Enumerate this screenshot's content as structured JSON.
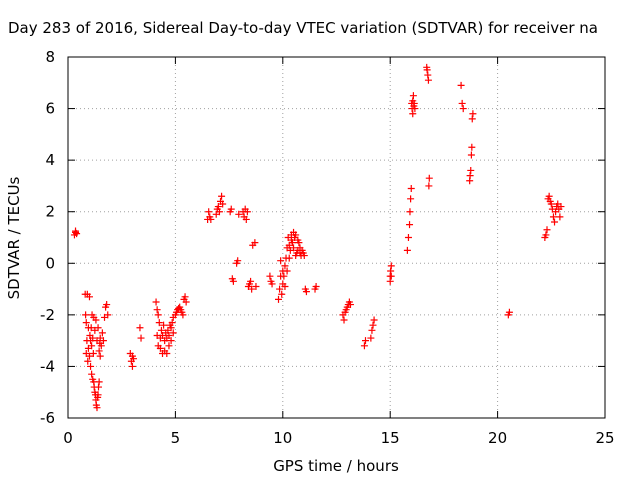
{
  "chart_data": {
    "type": "scatter",
    "title": "Day 283 of 2016, Sidereal Day-to-day VTEC variation (SDTVAR) for receiver na",
    "xlabel": "GPS time / hours",
    "ylabel": "SDTVAR / TECUs",
    "xlim": [
      0,
      25
    ],
    "ylim": [
      -6,
      8
    ],
    "xticks": [
      0,
      5,
      10,
      15,
      20,
      25
    ],
    "yticks": [
      -6,
      -4,
      -2,
      0,
      2,
      4,
      6,
      8
    ],
    "grid": true,
    "legend": "none",
    "marker": "plus",
    "color": "#ff0000",
    "series": [
      {
        "x": [
          0.3,
          0.35,
          0.35,
          0.4,
          0.8,
          0.82,
          0.85,
          0.85,
          0.88,
          0.9,
          0.92,
          0.95,
          0.95,
          1.0,
          1.0,
          1.02,
          1.05,
          1.05,
          1.08,
          1.1,
          1.1,
          1.12,
          1.15,
          1.15,
          1.18,
          1.2,
          1.2,
          1.22,
          1.25,
          1.25,
          1.28,
          1.3,
          1.3,
          1.32,
          1.35,
          1.35,
          1.38,
          1.4,
          1.4,
          1.42,
          1.45,
          1.45,
          1.48,
          1.5,
          1.5,
          1.55,
          1.6,
          1.65,
          1.7,
          1.75,
          1.8,
          1.85,
          2.9,
          2.95,
          3.0,
          3.0,
          3.05,
          3.35,
          3.4,
          4.1,
          4.15,
          4.15,
          4.2,
          4.2,
          4.25,
          4.3,
          4.3,
          4.35,
          4.4,
          4.4,
          4.45,
          4.5,
          4.5,
          4.55,
          4.6,
          4.6,
          4.65,
          4.7,
          4.7,
          4.75,
          4.8,
          4.8,
          4.85,
          4.9,
          4.9,
          5.0,
          5.05,
          5.1,
          5.15,
          5.2,
          5.25,
          5.3,
          5.35,
          5.4,
          5.45,
          5.5,
          6.5,
          6.55,
          6.6,
          6.65,
          6.9,
          6.95,
          7.0,
          7.05,
          7.1,
          7.15,
          7.2,
          7.55,
          7.6,
          7.65,
          7.7,
          7.85,
          7.9,
          7.95,
          8.15,
          8.2,
          8.25,
          8.3,
          8.35,
          8.4,
          8.45,
          8.5,
          8.55,
          8.6,
          8.7,
          8.75,
          9.4,
          9.45,
          9.5,
          9.8,
          9.85,
          9.9,
          9.9,
          9.95,
          10.0,
          10.0,
          10.05,
          10.1,
          10.1,
          10.15,
          10.2,
          10.2,
          10.25,
          10.3,
          10.3,
          10.35,
          10.4,
          10.4,
          10.45,
          10.5,
          10.5,
          10.55,
          10.6,
          10.6,
          10.65,
          10.7,
          10.7,
          10.75,
          10.8,
          10.8,
          10.85,
          10.9,
          10.95,
          11.0,
          11.05,
          11.1,
          11.5,
          11.55,
          12.8,
          12.85,
          12.9,
          12.95,
          13.0,
          13.05,
          13.1,
          13.15,
          13.8,
          13.85,
          14.1,
          14.15,
          14.2,
          14.25,
          15.0,
          15.0,
          15.02,
          15.05,
          15.05,
          15.8,
          15.85,
          15.9,
          15.92,
          15.95,
          15.98,
          16.0,
          16.02,
          16.05,
          16.05,
          16.08,
          16.1,
          16.12,
          16.15,
          16.7,
          16.72,
          16.75,
          16.78,
          16.8,
          16.82,
          18.3,
          18.35,
          18.4,
          18.7,
          18.72,
          18.75,
          18.78,
          18.8,
          18.82,
          18.85,
          20.5,
          20.55,
          22.2,
          22.25,
          22.3,
          22.35,
          22.4,
          22.45,
          22.5,
          22.55,
          22.6,
          22.65,
          22.7,
          22.75,
          22.8,
          22.85,
          22.9,
          22.95
        ],
        "y": [
          1.1,
          1.2,
          1.25,
          1.15,
          -1.2,
          -2.0,
          -2.3,
          -3.5,
          -3.0,
          -1.2,
          -3.8,
          -2.5,
          -3.3,
          -1.3,
          -3.6,
          -2.8,
          -3.0,
          -4.0,
          -2.5,
          -3.2,
          -4.3,
          -2.0,
          -4.5,
          -2.9,
          -3.5,
          -4.6,
          -2.1,
          -4.8,
          -5.0,
          -2.6,
          -5.1,
          -5.3,
          -2.2,
          -5.5,
          -5.6,
          -3.0,
          -5.2,
          -5.1,
          -2.5,
          -4.8,
          -4.6,
          -3.4,
          -3.1,
          -2.9,
          -3.6,
          -3.2,
          -2.7,
          -3.0,
          -2.1,
          -1.7,
          -1.6,
          -2.0,
          -3.5,
          -3.8,
          -4.0,
          -3.6,
          -3.7,
          -2.5,
          -2.9,
          -1.5,
          -1.8,
          -2.8,
          -2.0,
          -3.2,
          -2.3,
          -2.9,
          -3.3,
          -2.6,
          -2.8,
          -3.5,
          -2.4,
          -3.0,
          -3.4,
          -2.7,
          -2.9,
          -3.5,
          -2.6,
          -2.8,
          -3.2,
          -2.4,
          -2.5,
          -3.0,
          -2.3,
          -2.1,
          -2.7,
          -2.0,
          -1.9,
          -1.8,
          -1.75,
          -1.7,
          -1.8,
          -1.9,
          -2.0,
          -1.4,
          -1.3,
          -1.5,
          1.7,
          2.0,
          1.8,
          1.7,
          1.9,
          2.1,
          2.2,
          2.0,
          2.4,
          2.6,
          2.3,
          2.0,
          2.1,
          -0.6,
          -0.7,
          0.0,
          0.1,
          1.9,
          2.0,
          1.8,
          2.1,
          1.7,
          2.0,
          -0.9,
          -0.8,
          -0.7,
          -1.0,
          0.7,
          0.8,
          -0.9,
          -0.5,
          -0.7,
          -0.8,
          -1.4,
          -1.0,
          -0.5,
          0.1,
          -1.2,
          -0.8,
          -0.3,
          -0.5,
          -0.1,
          -0.9,
          0.2,
          -0.3,
          0.6,
          1.0,
          0.2,
          0.7,
          0.5,
          0.9,
          1.1,
          0.8,
          1.2,
          0.6,
          1.0,
          0.3,
          1.1,
          0.4,
          0.9,
          0.5,
          0.8,
          0.6,
          0.4,
          0.3,
          0.5,
          0.4,
          0.3,
          -1.0,
          -1.1,
          -1.0,
          -0.9,
          -2.0,
          -2.2,
          -1.9,
          -1.8,
          -1.7,
          -1.6,
          -1.5,
          -1.6,
          -3.2,
          -3.0,
          -2.9,
          -2.6,
          -2.4,
          -2.2,
          -0.7,
          -0.5,
          -0.3,
          -0.1,
          -0.5,
          0.5,
          1.0,
          1.5,
          2.0,
          2.5,
          2.9,
          6.2,
          6.0,
          5.8,
          6.3,
          6.5,
          6.1,
          6.2,
          6.0,
          7.6,
          7.5,
          7.3,
          7.1,
          3.0,
          3.3,
          6.9,
          6.2,
          6.0,
          3.2,
          3.4,
          3.6,
          4.2,
          4.5,
          5.6,
          5.8,
          -2.0,
          -1.9,
          1.0,
          1.1,
          1.3,
          2.5,
          2.6,
          2.4,
          2.3,
          2.1,
          1.8,
          1.6,
          2.0,
          2.2,
          2.3,
          2.1,
          1.8,
          2.2
        ]
      }
    ]
  }
}
